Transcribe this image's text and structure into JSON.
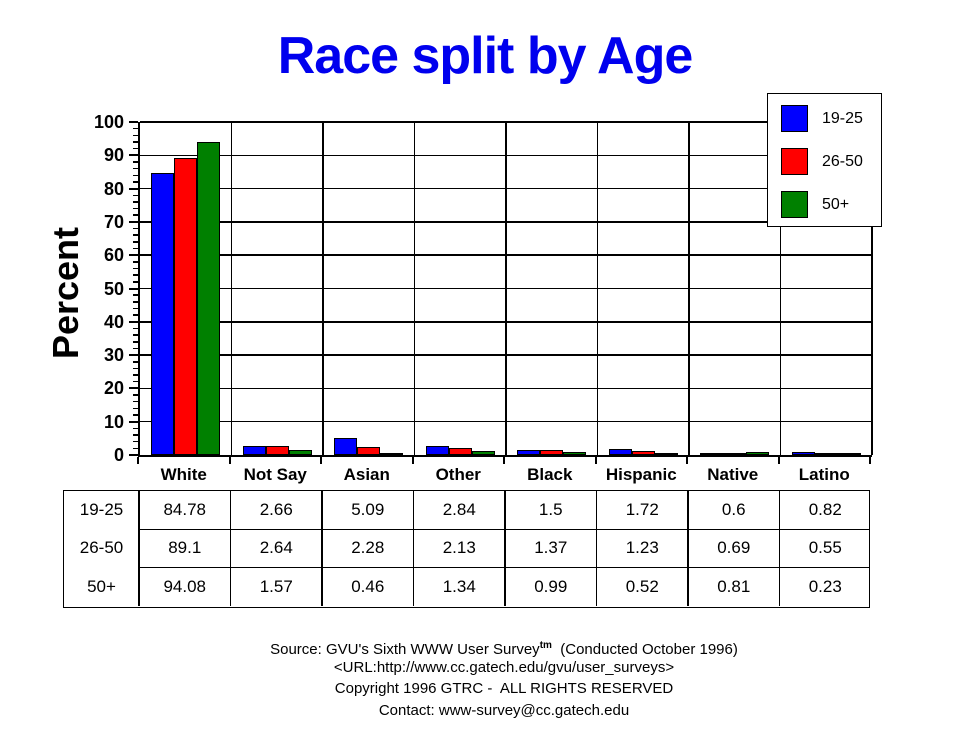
{
  "title": {
    "text": "Race split by Age",
    "color": "#0000ee"
  },
  "chart_data": {
    "type": "bar",
    "title": "Race split by Age",
    "categories": [
      "White",
      "Not Say",
      "Asian",
      "Other",
      "Black",
      "Hispanic",
      "Native",
      "Latino"
    ],
    "series": [
      {
        "name": "19-25",
        "color": "#0000ff",
        "values": [
          84.78,
          2.66,
          5.09,
          2.84,
          1.5,
          1.72,
          0.6,
          0.82
        ]
      },
      {
        "name": "26-50",
        "color": "#ff0000",
        "values": [
          89.1,
          2.64,
          2.28,
          2.13,
          1.37,
          1.23,
          0.69,
          0.55
        ]
      },
      {
        "name": "50+",
        "color": "#008000",
        "values": [
          94.08,
          1.57,
          0.46,
          1.34,
          0.99,
          0.52,
          0.81,
          0.23
        ]
      }
    ],
    "xlabel": "",
    "ylabel": "Percent",
    "ylim": [
      0,
      100
    ],
    "ytick_step": 10,
    "y_minor_step": 2,
    "grid": true,
    "legend_position": "top-right"
  },
  "table": {
    "row_labels": [
      "19-25",
      "26-50",
      "50+"
    ],
    "columns": [
      "White",
      "Not Say",
      "Asian",
      "Other",
      "Black",
      "Hispanic",
      "Native",
      "Latino"
    ],
    "rows": [
      [
        "84.78",
        "2.66",
        "5.09",
        "2.84",
        "1.5",
        "1.72",
        "0.6",
        "0.82"
      ],
      [
        "89.1",
        "2.64",
        "2.28",
        "2.13",
        "1.37",
        "1.23",
        "0.69",
        "0.55"
      ],
      [
        "94.08",
        "1.57",
        "0.46",
        "1.34",
        "0.99",
        "0.52",
        "0.81",
        "0.23"
      ]
    ]
  },
  "footer": {
    "source_prefix": "Source: GVU's Sixth WWW User Survey",
    "source_sup": "tm",
    "source_suffix": "  (Conducted October 1996)",
    "url_line": "<URL:http://www.cc.gatech.edu/gvu/user_surveys>",
    "copyright_line": "Copyright 1996 GTRC -  ALL RIGHTS RESERVED",
    "contact_line": "Contact: www-survey@cc.gatech.edu"
  }
}
